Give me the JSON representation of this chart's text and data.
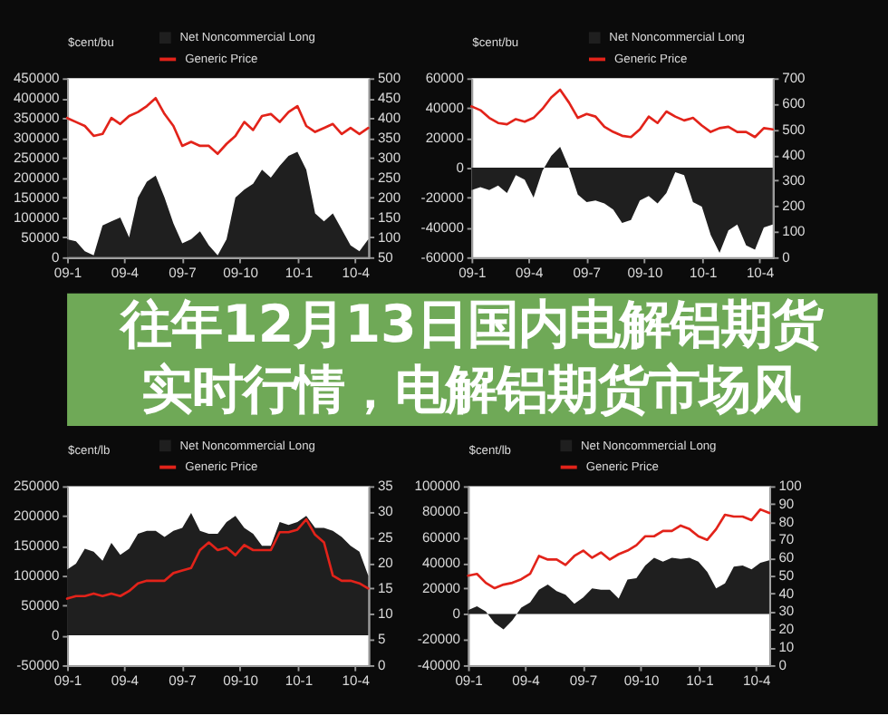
{
  "chart_data": [
    {
      "type": "area",
      "ylabel": "$cent/bu",
      "legend": "top",
      "x": [
        "2009-01-01",
        "2009-01-15",
        "2009-01-29",
        "2009-02-12",
        "2009-02-26",
        "2009-03-12",
        "2009-03-26",
        "2009-04-09",
        "2009-04-23",
        "2009-05-07",
        "2009-05-21",
        "2009-06-04",
        "2009-06-18",
        "2009-07-02",
        "2009-07-16",
        "2009-07-30",
        "2009-08-13",
        "2009-08-27",
        "2009-09-10",
        "2009-09-24",
        "2009-10-08",
        "2009-10-22",
        "2009-11-05",
        "2009-11-19",
        "2009-12-03",
        "2009-12-17",
        "2009-12-31",
        "2010-01-14",
        "2010-01-28",
        "2010-02-11",
        "2010-02-25",
        "2010-03-11",
        "2010-03-25",
        "2010-04-08",
        "2010-04-22"
      ],
      "xlim": [
        "2009-01-01",
        "2010-04-22"
      ],
      "xticks": [
        {
          "value": "2009-01-01",
          "label": "09-1"
        },
        {
          "value": "2009-04-01",
          "label": "09-4"
        },
        {
          "value": "2009-07-01",
          "label": "09-7"
        },
        {
          "value": "2009-10-01",
          "label": "09-10"
        },
        {
          "value": "2010-01-01",
          "label": "10-1"
        },
        {
          "value": "2010-04-01",
          "label": "10-4"
        }
      ],
      "ylim": [
        0,
        450000
      ],
      "yticks": [
        0,
        50000,
        100000,
        150000,
        200000,
        250000,
        300000,
        350000,
        400000,
        450000
      ],
      "y2lim": [
        50,
        500
      ],
      "y2ticks": [
        50,
        100,
        150,
        200,
        250,
        300,
        350,
        400,
        450,
        500
      ],
      "series": [
        {
          "name": "Net Noncommercial Long",
          "type": "area",
          "color": "#1f1f1f",
          "values": [
            45000,
            40000,
            15000,
            5000,
            80000,
            90000,
            100000,
            50000,
            150000,
            190000,
            205000,
            150000,
            85000,
            35000,
            45000,
            65000,
            30000,
            5000,
            45000,
            150000,
            170000,
            185000,
            220000,
            200000,
            230000,
            255000,
            265000,
            220000,
            110000,
            90000,
            110000,
            70000,
            30000,
            15000,
            45000
          ]
        },
        {
          "name": "Generic Price",
          "type": "line",
          "axis": "y2",
          "color": "#e2231a",
          "values": [
            400,
            390,
            380,
            355,
            360,
            400,
            385,
            405,
            415,
            430,
            450,
            410,
            380,
            330,
            340,
            330,
            330,
            310,
            335,
            355,
            390,
            370,
            405,
            410,
            390,
            415,
            430,
            380,
            365,
            375,
            385,
            360,
            375,
            360,
            375
          ]
        }
      ]
    },
    {
      "type": "area",
      "ylabel": "$cent/bu",
      "legend": "top right",
      "x": [
        "2009-01-01",
        "2009-01-15",
        "2009-01-29",
        "2009-02-12",
        "2009-02-26",
        "2009-03-12",
        "2009-03-26",
        "2009-04-09",
        "2009-04-23",
        "2009-05-07",
        "2009-05-21",
        "2009-06-04",
        "2009-06-18",
        "2009-07-02",
        "2009-07-16",
        "2009-07-30",
        "2009-08-13",
        "2009-08-27",
        "2009-09-10",
        "2009-09-24",
        "2009-10-08",
        "2009-10-22",
        "2009-11-05",
        "2009-11-19",
        "2009-12-03",
        "2009-12-17",
        "2009-12-31",
        "2010-01-14",
        "2010-01-28",
        "2010-02-11",
        "2010-02-25",
        "2010-03-11",
        "2010-03-25",
        "2010-04-08",
        "2010-04-22"
      ],
      "xlim": [
        "2009-01-01",
        "2010-04-22"
      ],
      "xticks": [
        {
          "value": "2009-01-01",
          "label": "09-1"
        },
        {
          "value": "2009-04-01",
          "label": "09-4"
        },
        {
          "value": "2009-07-01",
          "label": "09-7"
        },
        {
          "value": "2009-10-01",
          "label": "09-10"
        },
        {
          "value": "2010-01-01",
          "label": "10-1"
        },
        {
          "value": "2010-04-01",
          "label": "10-4"
        }
      ],
      "ylim": [
        -60000,
        60000
      ],
      "yticks": [
        -60000,
        -40000,
        -20000,
        0,
        20000,
        40000,
        60000
      ],
      "y2lim": [
        0,
        700
      ],
      "y2ticks": [
        0,
        100,
        200,
        300,
        400,
        500,
        600,
        700
      ],
      "series": [
        {
          "name": "Net Noncommercial Long",
          "type": "area",
          "color": "#1f1f1f",
          "values": [
            -15000,
            -13000,
            -15000,
            -12000,
            -17000,
            -5000,
            -8000,
            -20000,
            -2000,
            8000,
            14000,
            0,
            -18000,
            -23000,
            -22000,
            -24000,
            -28000,
            -37000,
            -35000,
            -22000,
            -19000,
            -24000,
            -17000,
            -3000,
            -5000,
            -23000,
            -26000,
            -45000,
            -57000,
            -42000,
            -38000,
            -52000,
            -55000,
            -40000,
            -38000
          ]
        },
        {
          "name": "Generic Price",
          "type": "line",
          "axis": "y2",
          "color": "#e2231a",
          "values": [
            590,
            575,
            545,
            525,
            520,
            540,
            530,
            545,
            580,
            625,
            655,
            605,
            545,
            560,
            550,
            510,
            490,
            475,
            470,
            500,
            550,
            525,
            570,
            550,
            535,
            545,
            515,
            490,
            505,
            510,
            490,
            490,
            470,
            505,
            500
          ]
        }
      ]
    },
    {
      "type": "other",
      "title": "往年12月13日国内电解铝期货实时行情，电解铝期货市场风"
    },
    {
      "type": "area",
      "ylabel": "$cent/lb",
      "legend": "top",
      "x": [
        "2009-01-01",
        "2009-01-15",
        "2009-01-29",
        "2009-02-12",
        "2009-02-26",
        "2009-03-12",
        "2009-03-26",
        "2009-04-09",
        "2009-04-23",
        "2009-05-07",
        "2009-05-21",
        "2009-06-04",
        "2009-06-18",
        "2009-07-02",
        "2009-07-16",
        "2009-07-30",
        "2009-08-13",
        "2009-08-27",
        "2009-09-10",
        "2009-09-24",
        "2009-10-08",
        "2009-10-22",
        "2009-11-05",
        "2009-11-19",
        "2009-12-03",
        "2009-12-17",
        "2009-12-31",
        "2010-01-14",
        "2010-01-28",
        "2010-02-11",
        "2010-02-25",
        "2010-03-11",
        "2010-03-25",
        "2010-04-08",
        "2010-04-22"
      ],
      "xlim": [
        "2009-01-01",
        "2010-04-22"
      ],
      "xticks": [
        {
          "value": "2009-01-01",
          "label": "09-1"
        },
        {
          "value": "2009-04-01",
          "label": "09-4"
        },
        {
          "value": "2009-07-01",
          "label": "09-7"
        },
        {
          "value": "2009-10-01",
          "label": "09-10"
        },
        {
          "value": "2010-01-01",
          "label": "10-1"
        },
        {
          "value": "2010-04-01",
          "label": "10-4"
        }
      ],
      "ylim": [
        -50000,
        250000
      ],
      "yticks": [
        -50000,
        0,
        50000,
        100000,
        150000,
        200000,
        250000
      ],
      "y2lim": [
        0,
        35
      ],
      "y2ticks": [
        0,
        5,
        10,
        15,
        20,
        25,
        30,
        35
      ],
      "series": [
        {
          "name": "Net Noncommercial Long",
          "type": "area",
          "color": "#1f1f1f",
          "values": [
            110000,
            120000,
            145000,
            140000,
            125000,
            155000,
            135000,
            145000,
            170000,
            175000,
            175000,
            165000,
            175000,
            180000,
            205000,
            175000,
            170000,
            170000,
            190000,
            200000,
            180000,
            170000,
            150000,
            150000,
            190000,
            185000,
            190000,
            200000,
            180000,
            180000,
            175000,
            165000,
            150000,
            140000,
            100000
          ]
        },
        {
          "name": "Generic Price",
          "type": "line",
          "axis": "y2",
          "color": "#e2231a",
          "values": [
            13,
            13.5,
            13.5,
            14,
            13.5,
            14,
            13.5,
            14.5,
            16,
            16.5,
            16.5,
            16.5,
            18,
            18.5,
            19,
            22.5,
            24,
            22.5,
            23,
            21.5,
            23.5,
            22.5,
            22.5,
            22.5,
            26,
            26,
            26.5,
            28.5,
            25.5,
            24,
            17.5,
            16.5,
            16.5,
            16,
            15
          ]
        }
      ]
    },
    {
      "type": "area",
      "ylabel": "$cent/lb",
      "legend": "top",
      "x": [
        "2009-01-01",
        "2009-01-15",
        "2009-01-29",
        "2009-02-12",
        "2009-02-26",
        "2009-03-12",
        "2009-03-26",
        "2009-04-09",
        "2009-04-23",
        "2009-05-07",
        "2009-05-21",
        "2009-06-04",
        "2009-06-18",
        "2009-07-02",
        "2009-07-16",
        "2009-07-30",
        "2009-08-13",
        "2009-08-27",
        "2009-09-10",
        "2009-09-24",
        "2009-10-08",
        "2009-10-22",
        "2009-11-05",
        "2009-11-19",
        "2009-12-03",
        "2009-12-17",
        "2009-12-31",
        "2010-01-14",
        "2010-01-28",
        "2010-02-11",
        "2010-02-25",
        "2010-03-11",
        "2010-03-25",
        "2010-04-08",
        "2010-04-22"
      ],
      "xlim": [
        "2009-01-01",
        "2010-04-22"
      ],
      "xticks": [
        {
          "value": "2009-01-01",
          "label": "09-1"
        },
        {
          "value": "2009-04-01",
          "label": "09-4"
        },
        {
          "value": "2009-07-01",
          "label": "09-7"
        },
        {
          "value": "2009-10-01",
          "label": "09-10"
        },
        {
          "value": "2010-01-01",
          "label": "10-1"
        },
        {
          "value": "2010-04-01",
          "label": "10-4"
        }
      ],
      "ylim": [
        -40000,
        100000
      ],
      "yticks": [
        -40000,
        -20000,
        0,
        20000,
        40000,
        60000,
        80000,
        100000
      ],
      "y2lim": [
        0,
        100
      ],
      "y2ticks": [
        0,
        10,
        20,
        30,
        40,
        50,
        60,
        70,
        80,
        90,
        100
      ],
      "series": [
        {
          "name": "Net Noncommercial Long",
          "type": "area",
          "color": "#1f1f1f",
          "values": [
            3000,
            6000,
            2000,
            -7000,
            -12000,
            -5000,
            5000,
            9000,
            19000,
            23000,
            18000,
            15000,
            8000,
            13000,
            20000,
            19000,
            19000,
            12000,
            27000,
            28000,
            38000,
            44000,
            41000,
            44000,
            43000,
            44000,
            41000,
            33000,
            20000,
            24000,
            37000,
            38000,
            35000,
            40000,
            42000
          ]
        },
        {
          "name": "Generic Price",
          "type": "line",
          "axis": "y2",
          "color": "#e2231a",
          "values": [
            50,
            51,
            46,
            43,
            45,
            46,
            48,
            51,
            61,
            59,
            59,
            56,
            61,
            64,
            60,
            63,
            59,
            62,
            64,
            67,
            72,
            72,
            75,
            75,
            78,
            76,
            72,
            70,
            76,
            84,
            83,
            83,
            81,
            87,
            85
          ]
        }
      ]
    }
  ]
}
